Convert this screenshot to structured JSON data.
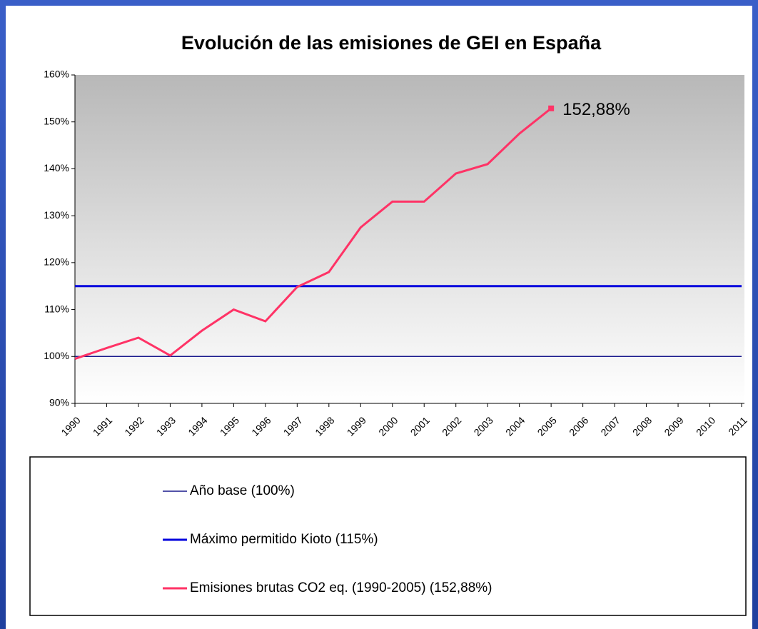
{
  "chart_data": {
    "type": "line",
    "title": "Evolución de las emisiones de GEI en España",
    "categories": [
      "1990",
      "1991",
      "1992",
      "1993",
      "1994",
      "1995",
      "1996",
      "1997",
      "1998",
      "1999",
      "2000",
      "2001",
      "2002",
      "2003",
      "2004",
      "2005",
      "2006",
      "2007",
      "2008",
      "2009",
      "2010",
      "2011"
    ],
    "series": [
      {
        "name": "Año base (100%)",
        "color": "#1a1a8c",
        "width": 1.5,
        "values": [
          100,
          100,
          100,
          100,
          100,
          100,
          100,
          100,
          100,
          100,
          100,
          100,
          100,
          100,
          100,
          100,
          100,
          100,
          100,
          100,
          100,
          100
        ]
      },
      {
        "name": "Máximo permitido Kioto (115%)",
        "color": "#0000dd",
        "width": 3,
        "values": [
          115,
          115,
          115,
          115,
          115,
          115,
          115,
          115,
          115,
          115,
          115,
          115,
          115,
          115,
          115,
          115,
          115,
          115,
          115,
          115,
          115,
          115
        ]
      },
      {
        "name": "Emisiones brutas CO2 eq. (1990-2005) (152,88%)",
        "color": "#ff3366",
        "width": 3,
        "values": [
          99.5,
          101.8,
          104,
          100.2,
          105.5,
          110,
          107.5,
          114.8,
          118,
          127.5,
          133,
          133,
          139,
          141,
          147.5,
          152.88,
          null,
          null,
          null,
          null,
          null,
          null
        ],
        "value_labels": [
          null,
          null,
          null,
          null,
          null,
          null,
          null,
          null,
          null,
          null,
          null,
          null,
          null,
          null,
          null,
          "152,88%",
          null,
          null,
          null,
          null,
          null,
          null
        ]
      }
    ],
    "ylim": [
      90,
      160
    ],
    "yticks": [
      {
        "value": 90,
        "label": "90%"
      },
      {
        "value": 100,
        "label": "100%"
      },
      {
        "value": 110,
        "label": "110%"
      },
      {
        "value": 120,
        "label": "120%"
      },
      {
        "value": 130,
        "label": "130%"
      },
      {
        "value": 140,
        "label": "140%"
      },
      {
        "value": 150,
        "label": "150%"
      },
      {
        "value": 160,
        "label": "160%"
      }
    ]
  }
}
